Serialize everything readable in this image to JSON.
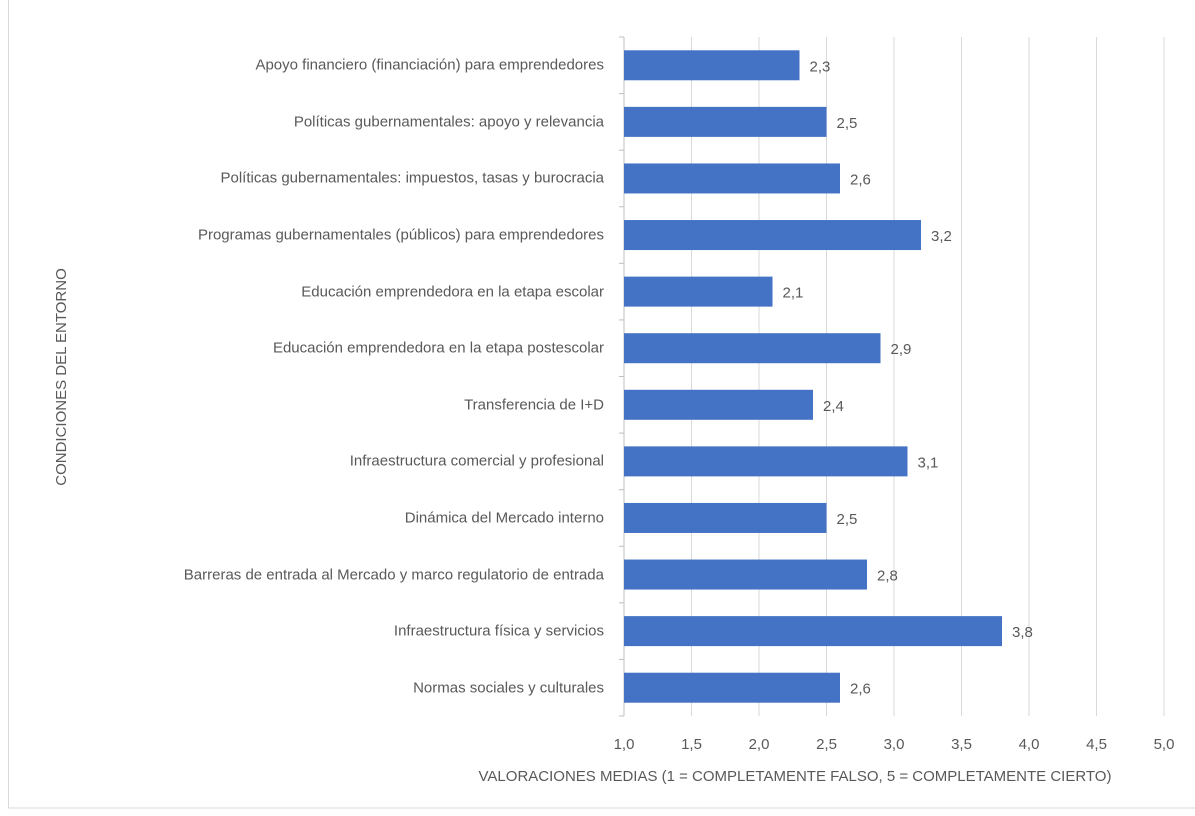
{
  "chart_data": {
    "type": "bar",
    "orientation": "horizontal",
    "categories": [
      "Apoyo financiero (financiación) para emprendedores",
      "Políticas gubernamentales: apoyo y relevancia",
      "Políticas gubernamentales: impuestos, tasas y burocracia",
      "Programas gubernamentales (públicos) para emprendedores",
      "Educación emprendedora en la etapa escolar",
      "Educación emprendedora en la etapa postescolar",
      "Transferencia de I+D",
      "Infraestructura comercial y profesional",
      "Dinámica del Mercado interno",
      "Barreras de entrada al Mercado y marco regulatorio de entrada",
      "Infraestructura física y servicios",
      "Normas sociales y culturales"
    ],
    "values": [
      2.3,
      2.5,
      2.6,
      3.2,
      2.1,
      2.9,
      2.4,
      3.1,
      2.5,
      2.8,
      3.8,
      2.6
    ],
    "value_labels": [
      "2,3",
      "2,5",
      "2,6",
      "3,2",
      "2,1",
      "2,9",
      "2,4",
      "3,1",
      "2,5",
      "2,8",
      "3,8",
      "2,6"
    ],
    "color": "#4472c4",
    "xlim": [
      1.0,
      5.0
    ],
    "xticks": [
      {
        "value": 1.0,
        "label": "1,0"
      },
      {
        "value": 1.5,
        "label": "1,5"
      },
      {
        "value": 2.0,
        "label": "2,0"
      },
      {
        "value": 2.5,
        "label": "2,5"
      },
      {
        "value": 3.0,
        "label": "3,0"
      },
      {
        "value": 3.5,
        "label": "3,5"
      },
      {
        "value": 4.0,
        "label": "4,0"
      },
      {
        "value": 4.5,
        "label": "4,5"
      },
      {
        "value": 5.0,
        "label": "5,0"
      }
    ],
    "x_label": "VALORACIONES MEDIAS (1 = COMPLETAMENTE FALSO,  5 = COMPLETAMENTE CIERTO)",
    "y_label": "CONDICIONES  DEL ENTORNO",
    "grid": true
  }
}
